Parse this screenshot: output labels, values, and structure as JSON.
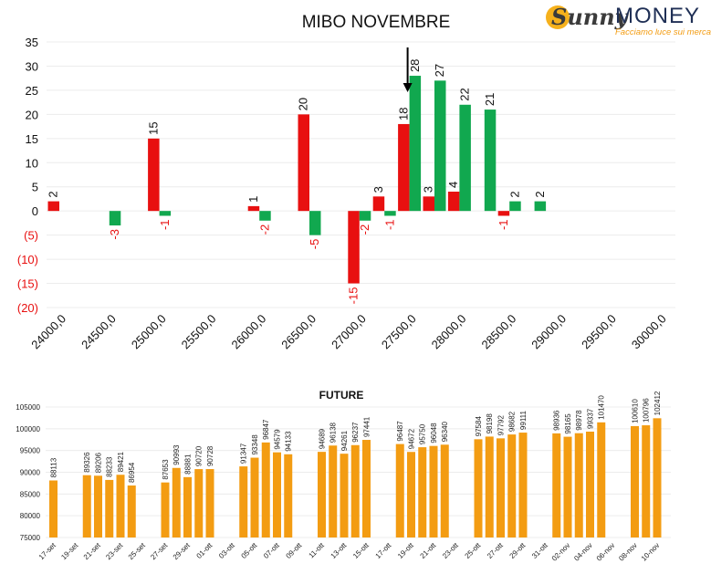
{
  "brand": {
    "name_a": "Sunny",
    "name_b": "MONEY",
    "tagline": "Facciamo luce sui mercati"
  },
  "colors": {
    "positive": "#11a84f",
    "negative": "#e81010",
    "future_bar": "#f39c12",
    "arrow": "#000000"
  },
  "chart_data": [
    {
      "type": "bar",
      "title": "MIBO NOVEMBRE",
      "xlabel": "",
      "ylabel": "",
      "ylim": [
        -20,
        35
      ],
      "yticks": [
        35,
        30,
        25,
        20,
        15,
        10,
        5,
        0,
        -5,
        -10,
        -15,
        -20
      ],
      "ytick_labels": [
        "35",
        "30",
        "25",
        "20",
        "15",
        "10",
        "5",
        "0",
        "(5)",
        "(10)",
        "(15)",
        "(20)"
      ],
      "grid": true,
      "legend": "none",
      "categories": [
        "24000,0",
        "24250,0",
        "24500,0",
        "24750,0",
        "25000,0",
        "25250,0",
        "25500,0",
        "25750,0",
        "26000,0",
        "26250,0",
        "26500,0",
        "26750,0",
        "27000,0",
        "27250,0",
        "27500,0",
        "27750,0",
        "28000,0",
        "28250,0",
        "28500,0",
        "28750,0",
        "29000,0",
        "29250,0",
        "29500,0",
        "29750,0",
        "30000,0"
      ],
      "category_labels_shown": [
        "24000,0",
        "24500,0",
        "25000,0",
        "25500,0",
        "26000,0",
        "26500,0",
        "27000,0",
        "27500,0",
        "28000,0",
        "28500,0",
        "29000,0",
        "29500,0",
        "30000,0"
      ],
      "series": [
        {
          "color": "#e81010",
          "values": [
            2,
            null,
            0,
            null,
            15,
            null,
            0,
            null,
            1,
            null,
            20,
            null,
            -15,
            3,
            18,
            3,
            4,
            null,
            -1,
            null,
            null,
            null,
            null,
            null,
            null
          ],
          "labels": [
            "2",
            "",
            "",
            "",
            "15",
            "",
            "",
            "",
            "1",
            "",
            "20",
            "",
            "-15",
            "3",
            "18",
            "3",
            "4",
            "",
            "-1",
            "",
            "",
            "",
            "",
            "",
            ""
          ]
        },
        {
          "color": "#11a84f",
          "values": [
            null,
            null,
            -3,
            null,
            -1,
            null,
            null,
            null,
            -2,
            null,
            -5,
            null,
            -2,
            -1,
            28,
            27,
            22,
            21,
            2,
            2,
            null,
            null,
            null,
            null,
            null
          ],
          "labels": [
            "",
            "",
            "-3",
            "",
            "-1",
            "",
            "",
            "",
            "-2",
            "",
            "-5",
            "",
            "-2",
            "-1",
            "28",
            "27",
            "22",
            "21",
            "2",
            "2",
            "",
            "",
            "",
            "",
            ""
          ]
        }
      ],
      "annotations": [
        {
          "type": "arrow",
          "category": "27500,0",
          "direction": "down"
        }
      ]
    },
    {
      "type": "bar",
      "title": "FUTURE",
      "xlabel": "",
      "ylabel": "",
      "ylim": [
        75000,
        105000
      ],
      "yticks": [
        75000,
        80000,
        85000,
        90000,
        95000,
        100000,
        105000
      ],
      "grid": true,
      "legend": "none",
      "categories": [
        "17-set",
        "18-set",
        "19-set",
        "20-set",
        "21-set",
        "22-set",
        "23-set",
        "24-set",
        "25-set",
        "26-set",
        "27-set",
        "28-set",
        "29-set",
        "30-set",
        "01-ott",
        "02-ott",
        "03-ott",
        "04-ott",
        "05-ott",
        "06-ott",
        "07-ott",
        "08-ott",
        "09-ott",
        "10-ott",
        "11-ott",
        "12-ott",
        "13-ott",
        "14-ott",
        "15-ott",
        "16-ott",
        "17-ott",
        "18-ott",
        "19-ott",
        "20-ott",
        "21-ott",
        "22-ott",
        "23-ott",
        "24-ott",
        "25-ott",
        "26-ott",
        "27-ott",
        "28-ott",
        "29-ott",
        "30-ott",
        "31-ott",
        "01-nov",
        "02-nov",
        "03-nov",
        "04-nov",
        "05-nov",
        "06-nov",
        "07-nov",
        "08-nov",
        "09-nov",
        "10-nov"
      ],
      "category_labels_shown": [
        "17-set",
        "19-set",
        "21-set",
        "23-set",
        "25-set",
        "27-set",
        "29-set",
        "01-ott",
        "03-ott",
        "05-ott",
        "07-ott",
        "09-ott",
        "11-ott",
        "13-ott",
        "15-ott",
        "17-ott",
        "19-ott",
        "21-ott",
        "23-ott",
        "25-ott",
        "27-ott",
        "29-ott",
        "31-ott",
        "02-nov",
        "04-nov",
        "06-nov",
        "08-nov",
        "10-nov"
      ],
      "values": [
        88113,
        null,
        null,
        89326,
        89206,
        88233,
        89421,
        86954,
        null,
        null,
        87653,
        90993,
        88881,
        90720,
        90728,
        null,
        null,
        91347,
        93348,
        96847,
        94579,
        94133,
        null,
        null,
        94689,
        96138,
        94261,
        96237,
        97441,
        null,
        null,
        96487,
        94672,
        95750,
        96048,
        96340,
        null,
        null,
        97584,
        98198,
        97792,
        98682,
        99111,
        null,
        null,
        98936,
        98165,
        98978,
        99337,
        101470,
        null,
        null,
        100610,
        100796,
        102412
      ]
    }
  ]
}
